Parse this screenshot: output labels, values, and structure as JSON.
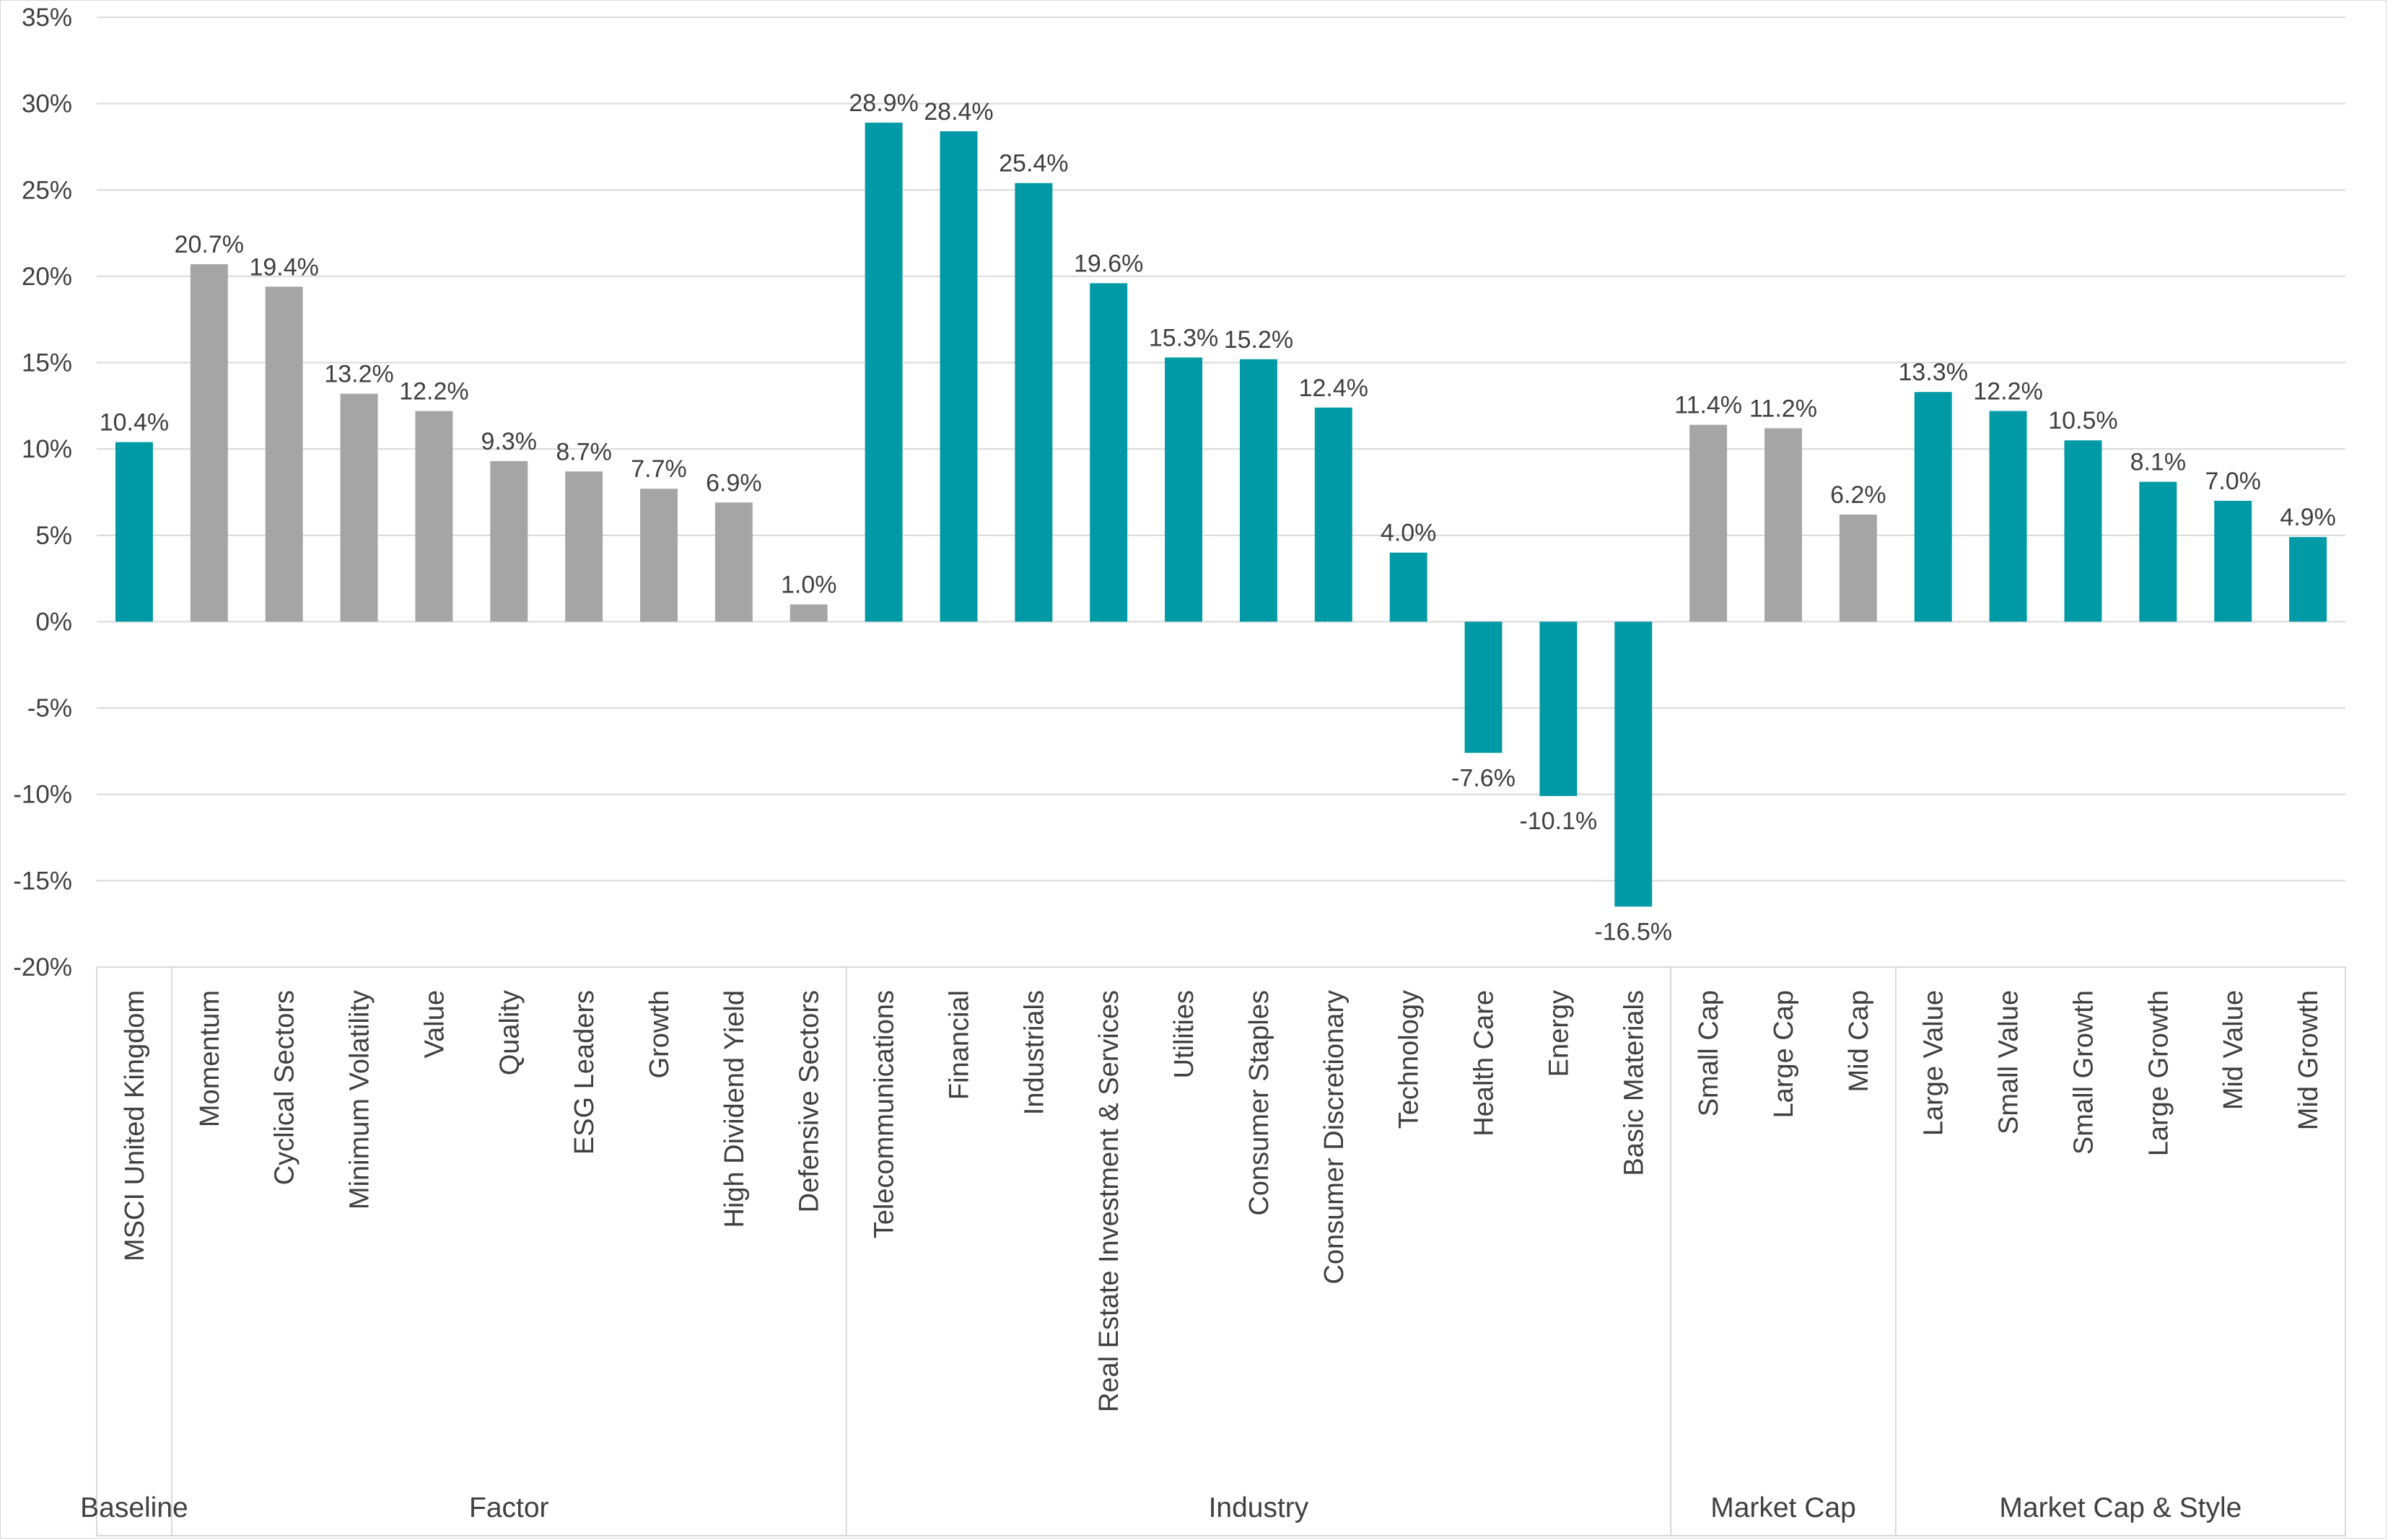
{
  "chart_data": {
    "type": "bar",
    "title": "",
    "xlabel": "",
    "ylabel": "",
    "ylim": [
      -20,
      35
    ],
    "y_tick_step": 5,
    "y_tick_format": "percent",
    "grid": "horizontal",
    "legend": "none",
    "colors": {
      "teal": "#009aa6",
      "gray": "#a5a5a5",
      "grid": "#d9d9d9",
      "text": "#404040"
    },
    "bars": [
      {
        "category": "MSCI United Kingdom",
        "value": 10.4,
        "label": "10.4%",
        "color": "teal",
        "group": "Baseline"
      },
      {
        "category": "Momentum",
        "value": 20.7,
        "label": "20.7%",
        "color": "gray",
        "group": "Factor"
      },
      {
        "category": "Cyclical Sectors",
        "value": 19.4,
        "label": "19.4%",
        "color": "gray",
        "group": "Factor"
      },
      {
        "category": "Minimum Volatility",
        "value": 13.2,
        "label": "13.2%",
        "color": "gray",
        "group": "Factor"
      },
      {
        "category": "Value",
        "value": 12.2,
        "label": "12.2%",
        "color": "gray",
        "group": "Factor"
      },
      {
        "category": "Quality",
        "value": 9.3,
        "label": "9.3%",
        "color": "gray",
        "group": "Factor"
      },
      {
        "category": "ESG Leaders",
        "value": 8.7,
        "label": "8.7%",
        "color": "gray",
        "group": "Factor"
      },
      {
        "category": "Growth",
        "value": 7.7,
        "label": "7.7%",
        "color": "gray",
        "group": "Factor"
      },
      {
        "category": "High Dividend Yield",
        "value": 6.9,
        "label": "6.9%",
        "color": "gray",
        "group": "Factor"
      },
      {
        "category": "Defensive Sectors",
        "value": 1.0,
        "label": "1.0%",
        "color": "gray",
        "group": "Factor"
      },
      {
        "category": "Telecommunications",
        "value": 28.9,
        "label": "28.9%",
        "color": "teal",
        "group": "Industry"
      },
      {
        "category": "Financial",
        "value": 28.4,
        "label": "28.4%",
        "color": "teal",
        "group": "Industry"
      },
      {
        "category": "Industrials",
        "value": 25.4,
        "label": "25.4%",
        "color": "teal",
        "group": "Industry"
      },
      {
        "category": "Real Estate Investment & Services",
        "value": 19.6,
        "label": "19.6%",
        "color": "teal",
        "group": "Industry"
      },
      {
        "category": "Utilities",
        "value": 15.3,
        "label": "15.3%",
        "color": "teal",
        "group": "Industry"
      },
      {
        "category": "Consumer Staples",
        "value": 15.2,
        "label": "15.2%",
        "color": "teal",
        "group": "Industry"
      },
      {
        "category": "Consumer Discretionary",
        "value": 12.4,
        "label": "12.4%",
        "color": "teal",
        "group": "Industry"
      },
      {
        "category": "Technology",
        "value": 4.0,
        "label": "4.0%",
        "color": "teal",
        "group": "Industry"
      },
      {
        "category": "Health Care",
        "value": -7.6,
        "label": "-7.6%",
        "color": "teal",
        "group": "Industry"
      },
      {
        "category": "Energy",
        "value": -10.1,
        "label": "-10.1%",
        "color": "teal",
        "group": "Industry"
      },
      {
        "category": "Basic Materials",
        "value": -16.5,
        "label": "-16.5%",
        "color": "teal",
        "group": "Industry"
      },
      {
        "category": "Small Cap",
        "value": 11.4,
        "label": "11.4%",
        "color": "gray",
        "group": "Market Cap"
      },
      {
        "category": "Large Cap",
        "value": 11.2,
        "label": "11.2%",
        "color": "gray",
        "group": "Market Cap"
      },
      {
        "category": "Mid Cap",
        "value": 6.2,
        "label": "6.2%",
        "color": "gray",
        "group": "Market Cap"
      },
      {
        "category": "Large Value",
        "value": 13.3,
        "label": "13.3%",
        "color": "teal",
        "group": "Market Cap & Style"
      },
      {
        "category": "Small Value",
        "value": 12.2,
        "label": "12.2%",
        "color": "teal",
        "group": "Market Cap & Style"
      },
      {
        "category": "Small Growth",
        "value": 10.5,
        "label": "10.5%",
        "color": "teal",
        "group": "Market Cap & Style"
      },
      {
        "category": "Large Growth",
        "value": 8.1,
        "label": "8.1%",
        "color": "teal",
        "group": "Market Cap & Style"
      },
      {
        "category": "Mid Value",
        "value": 7.0,
        "label": "7.0%",
        "color": "teal",
        "group": "Market Cap & Style"
      },
      {
        "category": "Mid Growth",
        "value": 4.9,
        "label": "4.9%",
        "color": "teal",
        "group": "Market Cap & Style"
      }
    ],
    "groups": [
      {
        "name": "Baseline",
        "count": 1
      },
      {
        "name": "Factor",
        "count": 9
      },
      {
        "name": "Industry",
        "count": 11
      },
      {
        "name": "Market Cap",
        "count": 3
      },
      {
        "name": "Market Cap & Style",
        "count": 6
      }
    ]
  }
}
